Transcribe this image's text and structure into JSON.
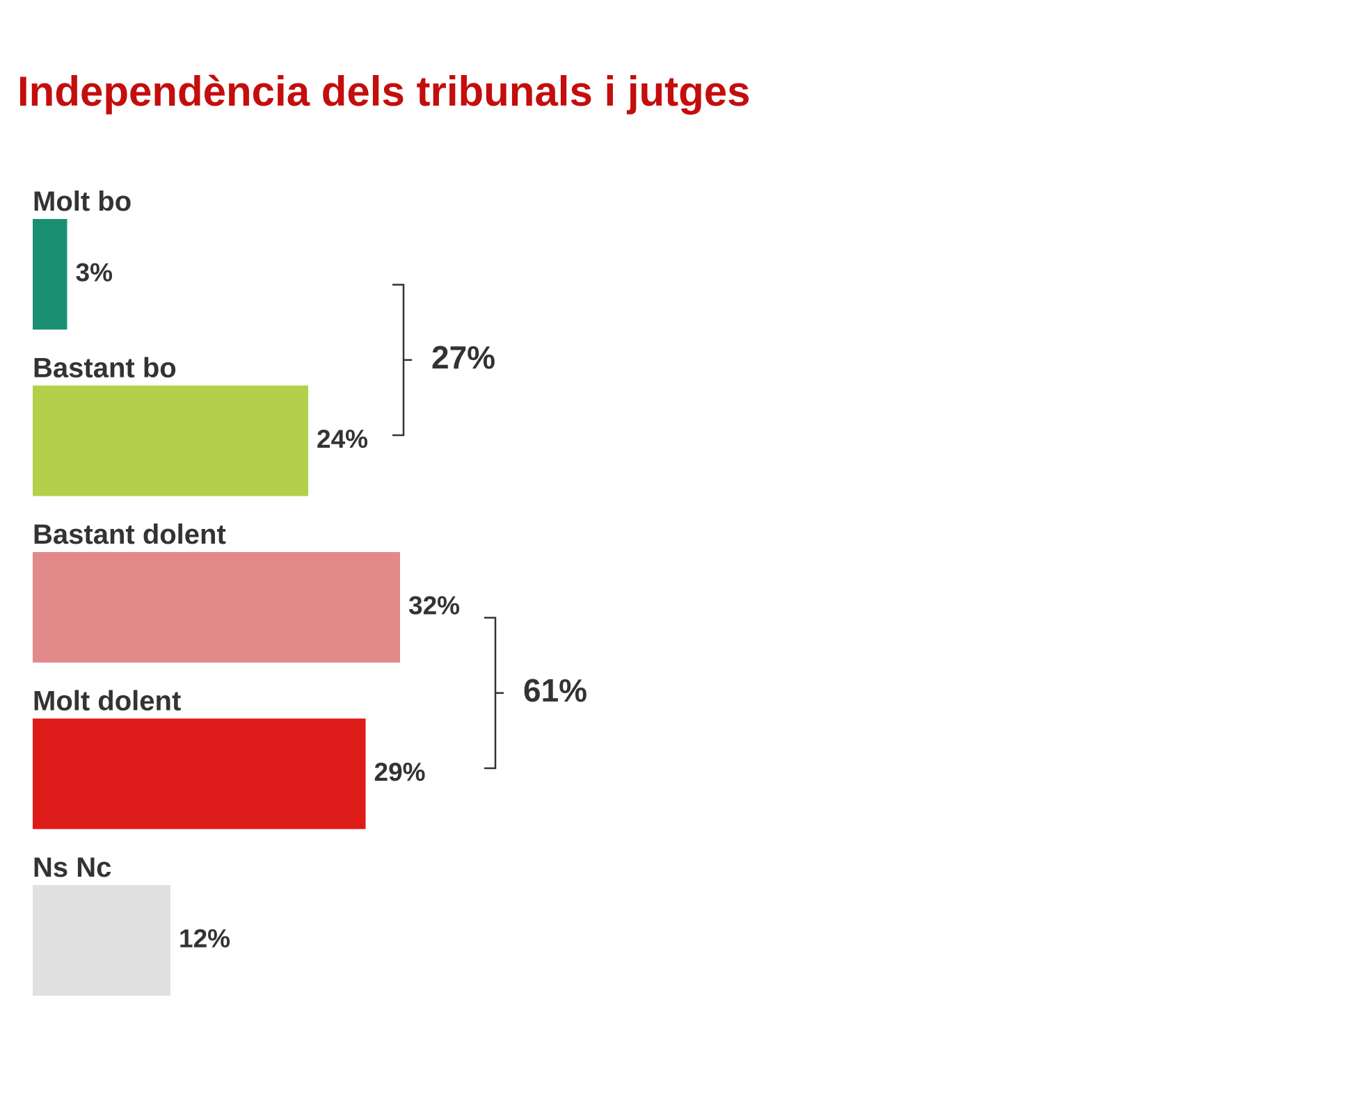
{
  "chart_data": {
    "type": "bar",
    "orientation": "horizontal",
    "title": "Independència dels tribunals i jutges",
    "categories": [
      "Molt bo",
      "Bastant bo",
      "Bastant dolent",
      "Molt dolent",
      "Ns Nc"
    ],
    "values": [
      3,
      24,
      32,
      29,
      12
    ],
    "value_labels": [
      "3%",
      "24%",
      "32%",
      "29%",
      "12%"
    ],
    "colors": [
      "#1b8f74",
      "#b2d04a",
      "#e28a89",
      "#dd1c1a",
      "#e0e0e0"
    ],
    "groups": [
      {
        "members": [
          "Molt bo",
          "Bastant bo"
        ],
        "value": 27,
        "label": "27%"
      },
      {
        "members": [
          "Bastant dolent",
          "Molt dolent"
        ],
        "value": 61,
        "label": "61%"
      }
    ]
  }
}
